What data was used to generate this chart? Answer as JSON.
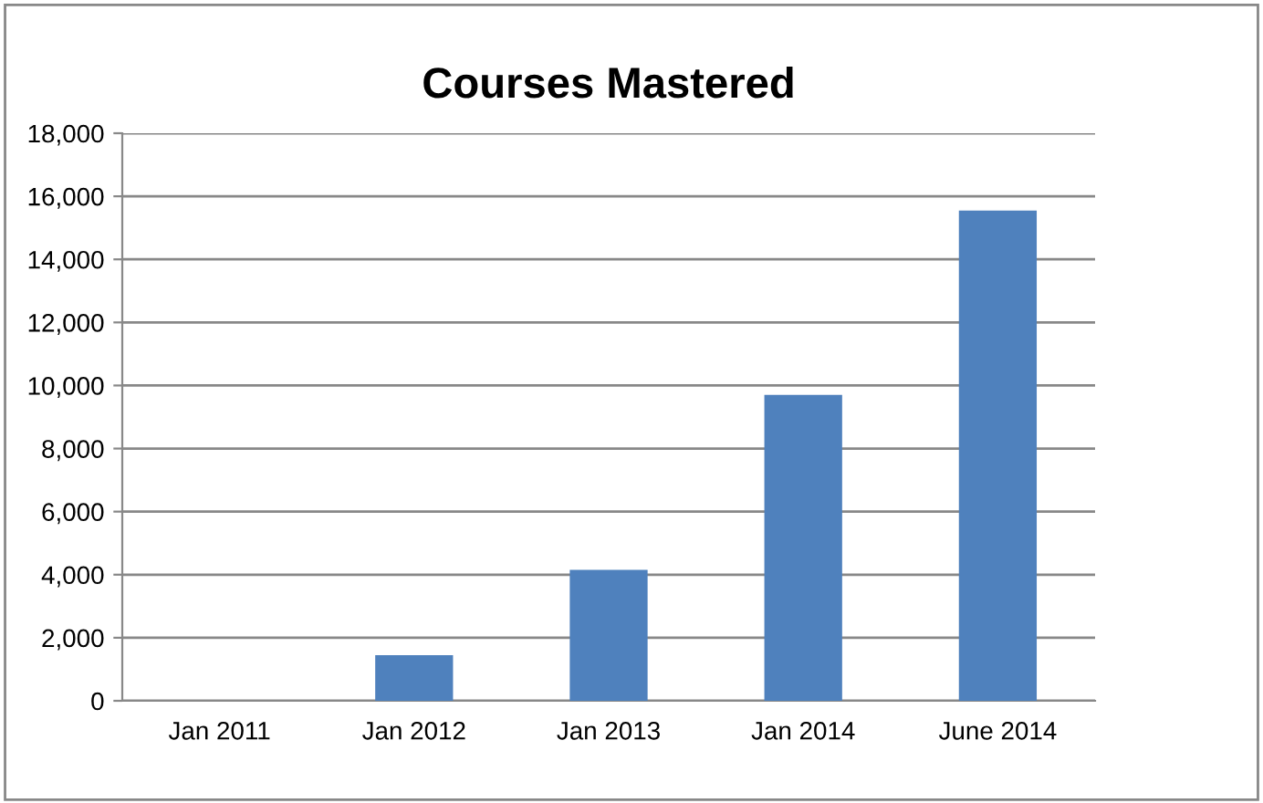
{
  "chart_data": {
    "type": "bar",
    "title": "Courses Mastered",
    "categories": [
      "Jan 2011",
      "Jan 2012",
      "Jan 2013",
      "Jan 2014",
      "June 2014"
    ],
    "values": [
      0,
      1450,
      4150,
      9700,
      15550
    ],
    "color": "#4f81bd",
    "ylim": [
      0,
      18000
    ],
    "yticks": [
      {
        "value": 0,
        "label": "0"
      },
      {
        "value": 2000,
        "label": "2,000"
      },
      {
        "value": 4000,
        "label": "4,000"
      },
      {
        "value": 6000,
        "label": "6,000"
      },
      {
        "value": 8000,
        "label": "8,000"
      },
      {
        "value": 10000,
        "label": "10,000"
      },
      {
        "value": 12000,
        "label": "12,000"
      },
      {
        "value": 14000,
        "label": "14,000"
      },
      {
        "value": 16000,
        "label": "16,000"
      },
      {
        "value": 18000,
        "label": "18,000"
      }
    ],
    "grid": "y",
    "legend": false
  }
}
